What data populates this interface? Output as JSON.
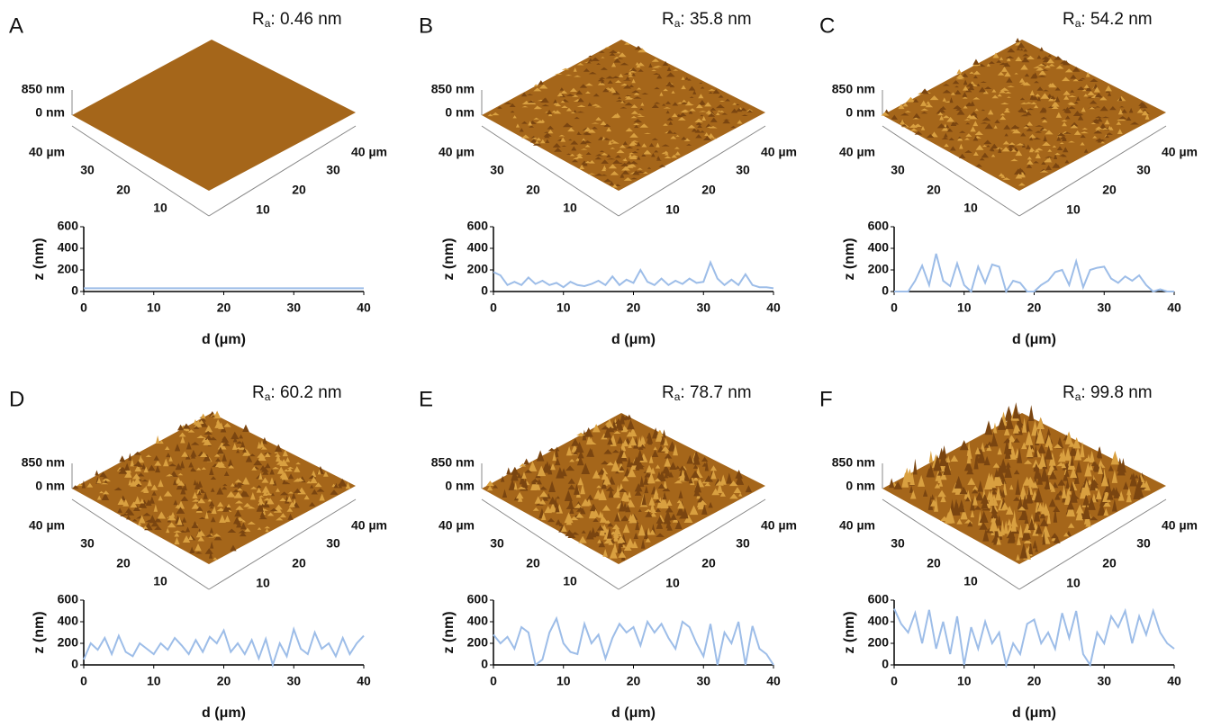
{
  "chart_data": [
    {
      "type": "line",
      "panel_label": "A",
      "ra": {
        "symbol": "R",
        "subscript": "a",
        "text": ": 0.46 nm"
      },
      "surface": {
        "z_labels": [
          "850 nm",
          "0 nm"
        ],
        "left_labels": [
          "40 µm",
          "30",
          "20",
          "10"
        ],
        "right_labels": [
          "10",
          "20",
          "30",
          "40 µm"
        ]
      },
      "xlabel": "d (μm)",
      "ylabel": "z (nm)",
      "x": [
        0,
        1,
        2,
        3,
        4,
        5,
        6,
        7,
        8,
        9,
        10,
        11,
        12,
        13,
        14,
        15,
        16,
        17,
        18,
        19,
        20,
        21,
        22,
        23,
        24,
        25,
        26,
        27,
        28,
        29,
        30,
        31,
        32,
        33,
        34,
        35,
        36,
        37,
        38,
        39,
        40
      ],
      "series": [
        {
          "color": "#9dbde8",
          "values": [
            30,
            30,
            30,
            30,
            30,
            30,
            30,
            30,
            30,
            30,
            30,
            30,
            30,
            30,
            30,
            30,
            30,
            30,
            30,
            30,
            30,
            30,
            30,
            30,
            30,
            30,
            30,
            30,
            30,
            30,
            30,
            30,
            30,
            30,
            30,
            30,
            30,
            30,
            30,
            30,
            30
          ]
        }
      ],
      "xlim": [
        0,
        40
      ],
      "ylim": [
        0,
        600
      ],
      "xticks": [
        0,
        10,
        20,
        30,
        40
      ],
      "yticks": [
        0,
        200,
        400,
        600
      ]
    },
    {
      "type": "line",
      "panel_label": "B",
      "ra": {
        "symbol": "R",
        "subscript": "a",
        "text": ": 35.8 nm"
      },
      "surface": {
        "z_labels": [
          "850 nm",
          "0 nm"
        ],
        "left_labels": [
          "40 µm",
          "30",
          "20",
          "10"
        ],
        "right_labels": [
          "10",
          "20",
          "30",
          "40 µm"
        ]
      },
      "xlabel": "d (μm)",
      "ylabel": "z (nm)",
      "x": [
        0,
        1,
        2,
        3,
        4,
        5,
        6,
        7,
        8,
        9,
        10,
        11,
        12,
        13,
        14,
        15,
        16,
        17,
        18,
        19,
        20,
        21,
        22,
        23,
        24,
        25,
        26,
        27,
        28,
        29,
        30,
        31,
        32,
        33,
        34,
        35,
        36,
        37,
        38,
        39,
        40
      ],
      "series": [
        {
          "color": "#9dbde8",
          "values": [
            180,
            150,
            60,
            90,
            60,
            130,
            70,
            100,
            60,
            80,
            40,
            90,
            60,
            50,
            70,
            100,
            60,
            140,
            60,
            110,
            80,
            200,
            90,
            60,
            120,
            60,
            100,
            70,
            120,
            80,
            90,
            270,
            120,
            60,
            110,
            60,
            160,
            60,
            40,
            40,
            30
          ]
        }
      ],
      "xlim": [
        0,
        40
      ],
      "ylim": [
        0,
        600
      ],
      "xticks": [
        0,
        10,
        20,
        30,
        40
      ],
      "yticks": [
        0,
        200,
        400,
        600
      ]
    },
    {
      "type": "line",
      "panel_label": "C",
      "ra": {
        "symbol": "R",
        "subscript": "a",
        "text": ": 54.2 nm"
      },
      "surface": {
        "z_labels": [
          "850 nm",
          "0 nm"
        ],
        "left_labels": [
          "40 µm",
          "30",
          "20",
          "10"
        ],
        "right_labels": [
          "10",
          "20",
          "30",
          "40 µm"
        ]
      },
      "xlabel": "d (μm)",
      "ylabel": "z (nm)",
      "x": [
        0,
        1,
        2,
        3,
        4,
        5,
        6,
        7,
        8,
        9,
        10,
        11,
        12,
        13,
        14,
        15,
        16,
        17,
        18,
        19,
        20,
        21,
        22,
        23,
        24,
        25,
        26,
        27,
        28,
        29,
        30,
        31,
        32,
        33,
        34,
        35,
        36,
        37,
        38,
        39,
        40
      ],
      "series": [
        {
          "color": "#9dbde8",
          "values": [
            0,
            0,
            0,
            100,
            240,
            60,
            350,
            100,
            50,
            260,
            60,
            0,
            230,
            80,
            250,
            230,
            0,
            100,
            80,
            0,
            0,
            60,
            100,
            180,
            200,
            60,
            280,
            40,
            200,
            220,
            230,
            120,
            80,
            140,
            100,
            150,
            60,
            0,
            20,
            0,
            0
          ]
        }
      ],
      "xlim": [
        0,
        40
      ],
      "ylim": [
        0,
        600
      ],
      "xticks": [
        0,
        10,
        20,
        30,
        40
      ],
      "yticks": [
        0,
        200,
        400,
        600
      ]
    },
    {
      "type": "line",
      "panel_label": "D",
      "ra": {
        "symbol": "R",
        "subscript": "a",
        "text": ": 60.2 nm"
      },
      "surface": {
        "z_labels": [
          "850 nm",
          "0 nm"
        ],
        "left_labels": [
          "40 µm",
          "30",
          "20",
          "10"
        ],
        "right_labels": [
          "10",
          "20",
          "30",
          "40 µm"
        ]
      },
      "xlabel": "d (μm)",
      "ylabel": "z (nm)",
      "x": [
        0,
        1,
        2,
        3,
        4,
        5,
        6,
        7,
        8,
        9,
        10,
        11,
        12,
        13,
        14,
        15,
        16,
        17,
        18,
        19,
        20,
        21,
        22,
        23,
        24,
        25,
        26,
        27,
        28,
        29,
        30,
        31,
        32,
        33,
        34,
        35,
        36,
        37,
        38,
        39,
        40
      ],
      "series": [
        {
          "color": "#9dbde8",
          "values": [
            50,
            200,
            140,
            250,
            100,
            270,
            120,
            80,
            200,
            150,
            100,
            200,
            140,
            250,
            180,
            100,
            230,
            120,
            260,
            200,
            320,
            120,
            200,
            100,
            230,
            60,
            240,
            0,
            200,
            80,
            330,
            150,
            100,
            300,
            150,
            200,
            80,
            250,
            100,
            200,
            270
          ]
        }
      ],
      "xlim": [
        0,
        40
      ],
      "ylim": [
        0,
        600
      ],
      "xticks": [
        0,
        10,
        20,
        30,
        40
      ],
      "yticks": [
        0,
        200,
        400,
        600
      ]
    },
    {
      "type": "line",
      "panel_label": "E",
      "ra": {
        "symbol": "R",
        "subscript": "a",
        "text": ": 78.7 nm"
      },
      "surface": {
        "z_labels": [
          "850 nm",
          "0 nm"
        ],
        "left_labels": [
          "40 µm",
          "30",
          "20",
          "10"
        ],
        "right_labels": [
          "10",
          "20",
          "30",
          "40 µm"
        ]
      },
      "xlabel": "d (μm)",
      "ylabel": "z (nm)",
      "x": [
        0,
        1,
        2,
        3,
        4,
        5,
        6,
        7,
        8,
        9,
        10,
        11,
        12,
        13,
        14,
        15,
        16,
        17,
        18,
        19,
        20,
        21,
        22,
        23,
        24,
        25,
        26,
        27,
        28,
        29,
        30,
        31,
        32,
        33,
        34,
        35,
        36,
        37,
        38,
        39,
        40
      ],
      "series": [
        {
          "color": "#9dbde8",
          "values": [
            280,
            200,
            260,
            150,
            350,
            300,
            0,
            50,
            300,
            430,
            200,
            120,
            100,
            380,
            200,
            280,
            60,
            250,
            380,
            300,
            350,
            180,
            400,
            300,
            380,
            250,
            150,
            400,
            350,
            200,
            80,
            380,
            0,
            300,
            200,
            400,
            0,
            360,
            150,
            100,
            0
          ]
        }
      ],
      "xlim": [
        0,
        40
      ],
      "ylim": [
        0,
        600
      ],
      "xticks": [
        0,
        10,
        20,
        30,
        40
      ],
      "yticks": [
        0,
        200,
        400,
        600
      ]
    },
    {
      "type": "line",
      "panel_label": "F",
      "ra": {
        "symbol": "R",
        "subscript": "a",
        "text": ": 99.8 nm"
      },
      "surface": {
        "z_labels": [
          "850 nm",
          "0 nm"
        ],
        "left_labels": [
          "40 µm",
          "30",
          "20",
          "10"
        ],
        "right_labels": [
          "10",
          "20",
          "30",
          "40 µm"
        ]
      },
      "xlabel": "d (μm)",
      "ylabel": "z (nm)",
      "x": [
        0,
        1,
        2,
        3,
        4,
        5,
        6,
        7,
        8,
        9,
        10,
        11,
        12,
        13,
        14,
        15,
        16,
        17,
        18,
        19,
        20,
        21,
        22,
        23,
        24,
        25,
        26,
        27,
        28,
        29,
        30,
        31,
        32,
        33,
        34,
        35,
        36,
        37,
        38,
        39,
        40
      ],
      "series": [
        {
          "color": "#9dbde8",
          "values": [
            520,
            380,
            300,
            480,
            200,
            510,
            150,
            400,
            100,
            450,
            0,
            350,
            150,
            400,
            200,
            300,
            0,
            200,
            100,
            380,
            420,
            200,
            300,
            150,
            480,
            250,
            500,
            100,
            0,
            300,
            200,
            450,
            350,
            500,
            200,
            450,
            280,
            500,
            300,
            200,
            150
          ]
        }
      ],
      "xlim": [
        0,
        40
      ],
      "ylim": [
        0,
        600
      ],
      "xticks": [
        0,
        10,
        20,
        30,
        40
      ],
      "yticks": [
        0,
        200,
        400,
        600
      ]
    }
  ]
}
